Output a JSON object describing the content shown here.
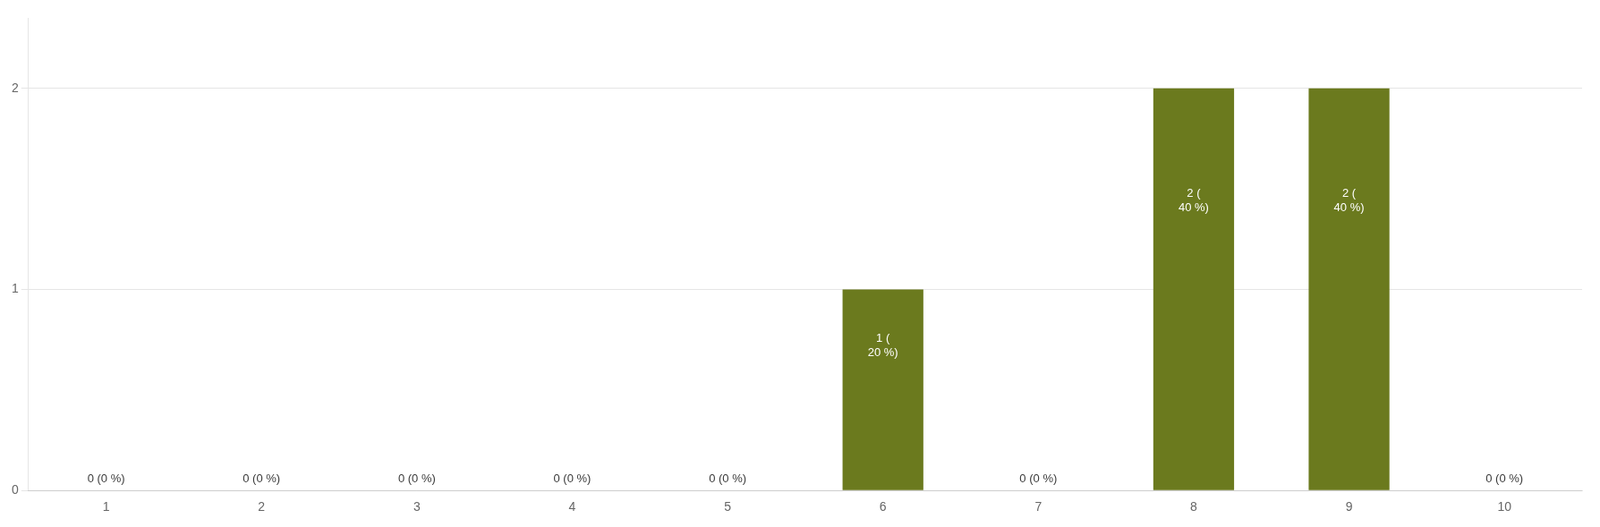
{
  "chart_data": {
    "type": "bar",
    "categories": [
      1,
      2,
      3,
      4,
      5,
      6,
      7,
      8,
      9,
      10
    ],
    "values": [
      0,
      0,
      0,
      0,
      0,
      1,
      0,
      2,
      2,
      0
    ],
    "value_labels": [
      "0 (0 %)",
      "0 (0 %)",
      "0 (0 %)",
      "0 (0 %)",
      "0 (0 %)",
      "1 (\n20 %)",
      "0 (0 %)",
      "2 (\n40 %)",
      "2 (\n40 %)",
      "0 (0 %)"
    ],
    "data_labels": true,
    "color": "#6b7a1e",
    "ylim": [
      0,
      2.35
    ],
    "yticks": [
      0,
      1,
      2
    ],
    "grid": true
  }
}
